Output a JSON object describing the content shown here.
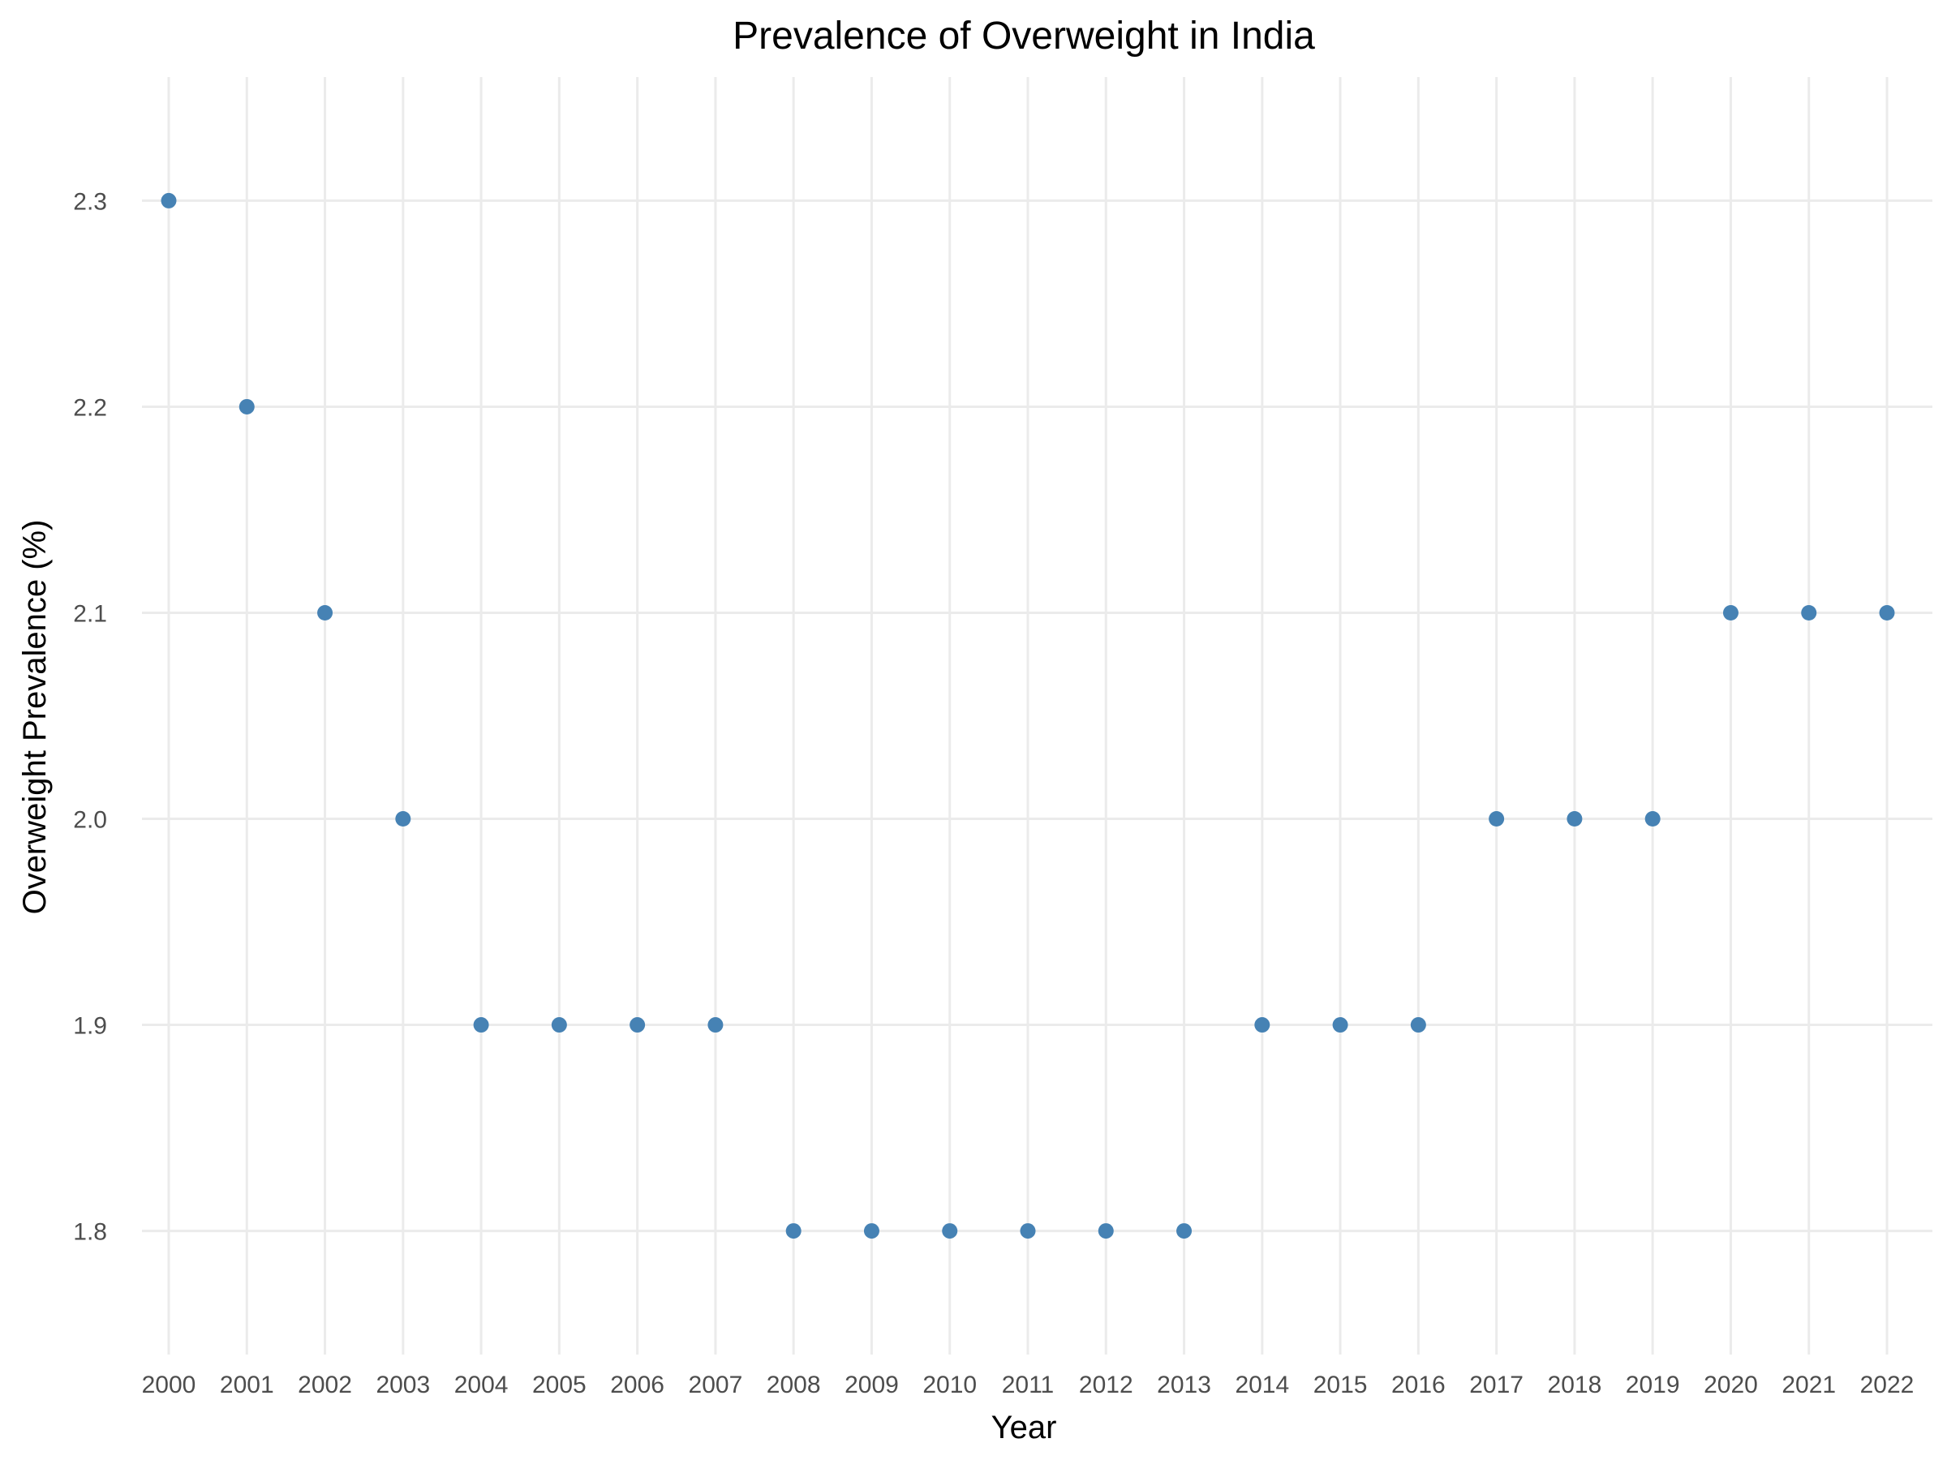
{
  "chart_data": {
    "type": "scatter",
    "title": "Prevalence of Overweight in India",
    "xlabel": "Year",
    "ylabel": "Overweight Prevalence (%)",
    "x": [
      2000,
      2001,
      2002,
      2003,
      2004,
      2005,
      2006,
      2007,
      2008,
      2009,
      2010,
      2011,
      2012,
      2013,
      2014,
      2015,
      2016,
      2017,
      2018,
      2019,
      2020,
      2021,
      2022
    ],
    "y": [
      2.3,
      2.2,
      2.1,
      2.0,
      1.9,
      1.9,
      1.9,
      1.9,
      1.8,
      1.8,
      1.8,
      1.8,
      1.8,
      1.8,
      1.9,
      1.9,
      1.9,
      2.0,
      2.0,
      2.0,
      2.1,
      2.1,
      2.1
    ],
    "x_ticks": [
      "2000",
      "2001",
      "2002",
      "2003",
      "2004",
      "2005",
      "2006",
      "2007",
      "2008",
      "2009",
      "2010",
      "2011",
      "2012",
      "2013",
      "2014",
      "2015",
      "2016",
      "2017",
      "2018",
      "2019",
      "2020",
      "2021",
      "2022"
    ],
    "y_ticks": [
      "1.8",
      "1.9",
      "2.0",
      "2.1",
      "2.2",
      "2.3"
    ],
    "ylim": [
      1.74,
      2.36
    ],
    "grid": true,
    "legend": "none",
    "colors": {
      "point": "#4682b4",
      "grid": "#ebebeb",
      "tick_text": "#4d4d4d",
      "text": "#000000"
    }
  }
}
